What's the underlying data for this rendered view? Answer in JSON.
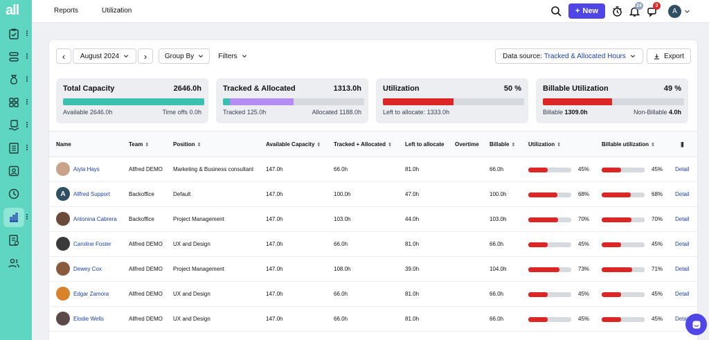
{
  "logo": "all",
  "breadcrumb": {
    "parent": "Reports",
    "separator": "›",
    "current": "Utilization"
  },
  "header": {
    "new_label": "New",
    "new_plus": "+",
    "notifications_count": "24",
    "messages_count": "3",
    "avatar_initials": "A"
  },
  "toolbar": {
    "prev": "‹",
    "next": "›",
    "month": "August 2024",
    "group_by": "Group By",
    "filters": "Filters",
    "data_source_label": "Data source:",
    "data_source_value": "Tracked & Allocated Hours",
    "export": "Export",
    "caret": "⌄"
  },
  "stats": [
    {
      "title": "Total Capacity",
      "value": "2646.0h",
      "left_label": "Available",
      "left_value": "2646.0h",
      "right_label": "Time offs",
      "right_value": "0.0h",
      "fill_fraction": 1.0,
      "colors": [
        "#3bbfae"
      ],
      "secondary_fraction": 0
    },
    {
      "title": "Tracked & Allocated",
      "value": "1313.0h",
      "left_label": "Tracked",
      "left_value": "125.0h",
      "right_label": "Allocated",
      "right_value": "1188.0h",
      "fill_fraction": 0.05,
      "secondary_fraction": 0.45,
      "colors": [
        "#3bbfae",
        "#b48cf2"
      ]
    },
    {
      "title": "Utilization",
      "value": "50 %",
      "left_label": "Left to allocate:",
      "left_value": "1333.0h",
      "right_label": "",
      "right_value": "",
      "fill_fraction": 0.5,
      "secondary_fraction": 0,
      "colors": [
        "#dc2626"
      ]
    },
    {
      "title": "Billable Utilization",
      "value": "49 %",
      "left_label": "Billable",
      "left_value": "1309.0h",
      "right_label": "Non-Billable",
      "right_value": "4.0h",
      "fill_fraction": 0.49,
      "secondary_fraction": 0,
      "colors": [
        "#dc2626"
      ]
    }
  ],
  "columns": {
    "name": "Name",
    "team": "Team",
    "position": "Position",
    "available": "Available Capacity",
    "tracked": "Tracked + Allocated",
    "left": "Left to allocate",
    "overtime": "Overtime",
    "billable": "Billable",
    "utilization": "Utilization",
    "billable_util": "Billable utilization",
    "sort": "⇕",
    "columns_icon": "|||"
  },
  "rows": [
    {
      "name": "Aiyla Hays",
      "team": "Allfred DEMO",
      "position": "Marketing & Business consultant",
      "available": "147.0h",
      "tracked": "66.0h",
      "left": "81.0h",
      "overtime": "",
      "billable": "66.0h",
      "util": "45%",
      "util_pct": 45,
      "bill_util": "45%",
      "bill_util_pct": 45,
      "detail": "Detail",
      "avatar_color": "#c9a48a",
      "initials": ""
    },
    {
      "name": "Allfred Support",
      "team": "Backoffice",
      "position": "Default",
      "available": "147.0h",
      "tracked": "100.0h",
      "left": "47.0h",
      "overtime": "",
      "billable": "100.0h",
      "util": "68%",
      "util_pct": 68,
      "bill_util": "68%",
      "bill_util_pct": 68,
      "detail": "Detail",
      "avatar_color": "#2f4f63",
      "initials": "A"
    },
    {
      "name": "Antonina Cabrera",
      "team": "Backoffice",
      "position": "Project Management",
      "available": "147.0h",
      "tracked": "103.0h",
      "left": "44.0h",
      "overtime": "",
      "billable": "103.0h",
      "util": "70%",
      "util_pct": 70,
      "bill_util": "70%",
      "bill_util_pct": 70,
      "detail": "Detail",
      "avatar_color": "#6b4a3a",
      "initials": ""
    },
    {
      "name": "Caroline Foster",
      "team": "Allfred DEMO",
      "position": "UX and Design",
      "available": "147.0h",
      "tracked": "66.0h",
      "left": "81.0h",
      "overtime": "",
      "billable": "66.0h",
      "util": "45%",
      "util_pct": 45,
      "bill_util": "45%",
      "bill_util_pct": 45,
      "detail": "Detail",
      "avatar_color": "#3a3a3a",
      "initials": ""
    },
    {
      "name": "Dewey Cox",
      "team": "Allfred DEMO",
      "position": "Project Management",
      "available": "147.0h",
      "tracked": "108.0h",
      "left": "39.0h",
      "overtime": "",
      "billable": "104.0h",
      "util": "73%",
      "util_pct": 73,
      "bill_util": "71%",
      "bill_util_pct": 71,
      "detail": "Detail",
      "avatar_color": "#8a5a3c",
      "initials": ""
    },
    {
      "name": "Edgar Zamora",
      "team": "Allfred DEMO",
      "position": "UX and Design",
      "available": "147.0h",
      "tracked": "66.0h",
      "left": "81.0h",
      "overtime": "",
      "billable": "66.0h",
      "util": "45%",
      "util_pct": 45,
      "bill_util": "45%",
      "bill_util_pct": 45,
      "detail": "Detail",
      "avatar_color": "#d9822b",
      "initials": ""
    },
    {
      "name": "Elodie Wells",
      "team": "Allfred DEMO",
      "position": "UX and Design",
      "available": "147.0h",
      "tracked": "66.0h",
      "left": "81.0h",
      "overtime": "",
      "billable": "66.0h",
      "util": "45%",
      "util_pct": 45,
      "bill_util": "45%",
      "bill_util_pct": 45,
      "detail": "Detail",
      "avatar_color": "#5a4a4a",
      "initials": ""
    }
  ]
}
